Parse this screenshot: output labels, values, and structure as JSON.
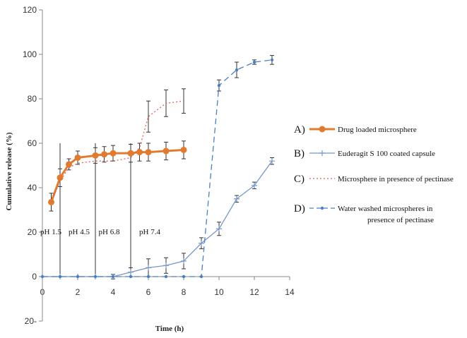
{
  "chart_data": {
    "type": "line",
    "title": "",
    "xlabel": "Time (h)",
    "ylabel": "Cumulative release (%)",
    "xlim": [
      0,
      14
    ],
    "ylim": [
      -20,
      120
    ],
    "x_ticks": [
      "0",
      "2",
      "4",
      "6",
      "8",
      "10",
      "12",
      "14"
    ],
    "y_ticks": [
      "120",
      "100",
      "80",
      "60",
      "40",
      "20",
      "0",
      "20-"
    ],
    "ph_markers": [
      {
        "x": 1,
        "label": "pH 1.5"
      },
      {
        "x": 3,
        "label": "pH 4.5"
      },
      {
        "x": 5,
        "label": "pH 6.8"
      },
      {
        "x": 7,
        "label": "pH 7.4"
      }
    ],
    "series": [
      {
        "letter": "A)",
        "name": "Drug loaded microsphere",
        "color": "#e07b30",
        "style": "solid-circle",
        "x": [
          0.5,
          1,
          1.5,
          2,
          3,
          3.5,
          4,
          5,
          5.5,
          6,
          7,
          8
        ],
        "y": [
          33.5,
          44.5,
          50.5,
          53.5,
          54.5,
          55,
          55.5,
          55.5,
          56,
          56,
          56.5,
          57
        ],
        "err": [
          4,
          4,
          2.5,
          3,
          3.5,
          3.5,
          3.5,
          4,
          4,
          4,
          4,
          4
        ]
      },
      {
        "letter": "B)",
        "name": "Euderagit S 100 coated capsule",
        "color": "#7896c8",
        "style": "solid-plus",
        "x": [
          0,
          1,
          2,
          3,
          4,
          5,
          6,
          7,
          8,
          9,
          10,
          11,
          12,
          13
        ],
        "y": [
          0,
          0,
          0,
          0,
          0,
          2,
          4,
          5,
          7,
          15,
          21.5,
          35,
          41,
          52
        ],
        "err": [
          0,
          0,
          0,
          0,
          1,
          2,
          4,
          3.5,
          3.5,
          2.5,
          3,
          1.5,
          1.5,
          1.5
        ]
      },
      {
        "letter": "C)",
        "name": "Microsphere in presence of pectinase",
        "color": "#dc5f5f",
        "style": "dotted",
        "x": [
          0.5,
          1,
          1.5,
          2,
          3,
          3.5,
          4,
          5,
          5.5,
          6,
          7,
          8
        ],
        "y": [
          33.5,
          43,
          49,
          51,
          52,
          52,
          52,
          53.5,
          58,
          72,
          78,
          79
        ],
        "err": [
          0,
          0,
          0,
          0,
          0,
          0,
          0,
          0,
          0,
          7,
          6,
          5.5
        ]
      },
      {
        "letter": "D)",
        "name": "Water washed microspheres in",
        "name_line2": "presence of pectinase",
        "color": "#4a7fc0",
        "style": "dashed-dot",
        "x": [
          0,
          1,
          2,
          3,
          4,
          5,
          6,
          7,
          8,
          9,
          10,
          11,
          12,
          13
        ],
        "y": [
          0,
          0,
          0,
          0,
          0,
          0,
          0,
          0,
          0,
          0,
          86,
          93,
          96.5,
          97.5
        ],
        "err": [
          0,
          0,
          0,
          0,
          0,
          0,
          0,
          0,
          0,
          0,
          2.5,
          3.5,
          1,
          2
        ]
      }
    ]
  }
}
